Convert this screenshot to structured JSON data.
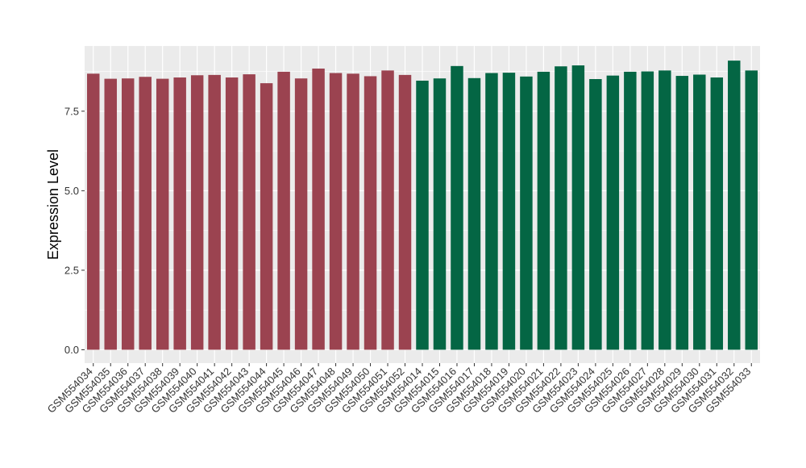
{
  "chart_data": {
    "type": "bar",
    "title": "",
    "xlabel": "",
    "ylabel": "Expression Level",
    "ylim": [
      -0.42,
      9.55
    ],
    "yticks": [
      "0.0",
      "2.5",
      "5.0",
      "7.5"
    ],
    "grid": true,
    "legend": "none",
    "colors": {
      "group1": "#9b4350",
      "group2": "#046644",
      "panel": "#ebebeb",
      "gridline": "#ffffff"
    },
    "categories": [
      "GSM554034",
      "GSM554035",
      "GSM554036",
      "GSM554037",
      "GSM554038",
      "GSM554039",
      "GSM554040",
      "GSM554041",
      "GSM554042",
      "GSM554043",
      "GSM554044",
      "GSM554045",
      "GSM554046",
      "GSM554047",
      "GSM554048",
      "GSM554049",
      "GSM554050",
      "GSM554051",
      "GSM554052",
      "GSM554014",
      "GSM554015",
      "GSM554016",
      "GSM554017",
      "GSM554018",
      "GSM554019",
      "GSM554020",
      "GSM554021",
      "GSM554022",
      "GSM554023",
      "GSM554024",
      "GSM554025",
      "GSM554026",
      "GSM554027",
      "GSM554028",
      "GSM554029",
      "GSM554030",
      "GSM554031",
      "GSM554032",
      "GSM554033"
    ],
    "values": [
      8.68,
      8.52,
      8.53,
      8.58,
      8.52,
      8.56,
      8.63,
      8.64,
      8.56,
      8.66,
      8.38,
      8.74,
      8.53,
      8.84,
      8.7,
      8.68,
      8.6,
      8.78,
      8.64,
      8.46,
      8.53,
      8.92,
      8.54,
      8.7,
      8.71,
      8.59,
      8.74,
      8.91,
      8.94,
      8.51,
      8.62,
      8.74,
      8.75,
      8.78,
      8.61,
      8.65,
      8.56,
      9.09,
      8.78
    ],
    "groups": [
      "group1",
      "group1",
      "group1",
      "group1",
      "group1",
      "group1",
      "group1",
      "group1",
      "group1",
      "group1",
      "group1",
      "group1",
      "group1",
      "group1",
      "group1",
      "group1",
      "group1",
      "group1",
      "group1",
      "group2",
      "group2",
      "group2",
      "group2",
      "group2",
      "group2",
      "group2",
      "group2",
      "group2",
      "group2",
      "group2",
      "group2",
      "group2",
      "group2",
      "group2",
      "group2",
      "group2",
      "group2",
      "group2",
      "group2"
    ]
  }
}
